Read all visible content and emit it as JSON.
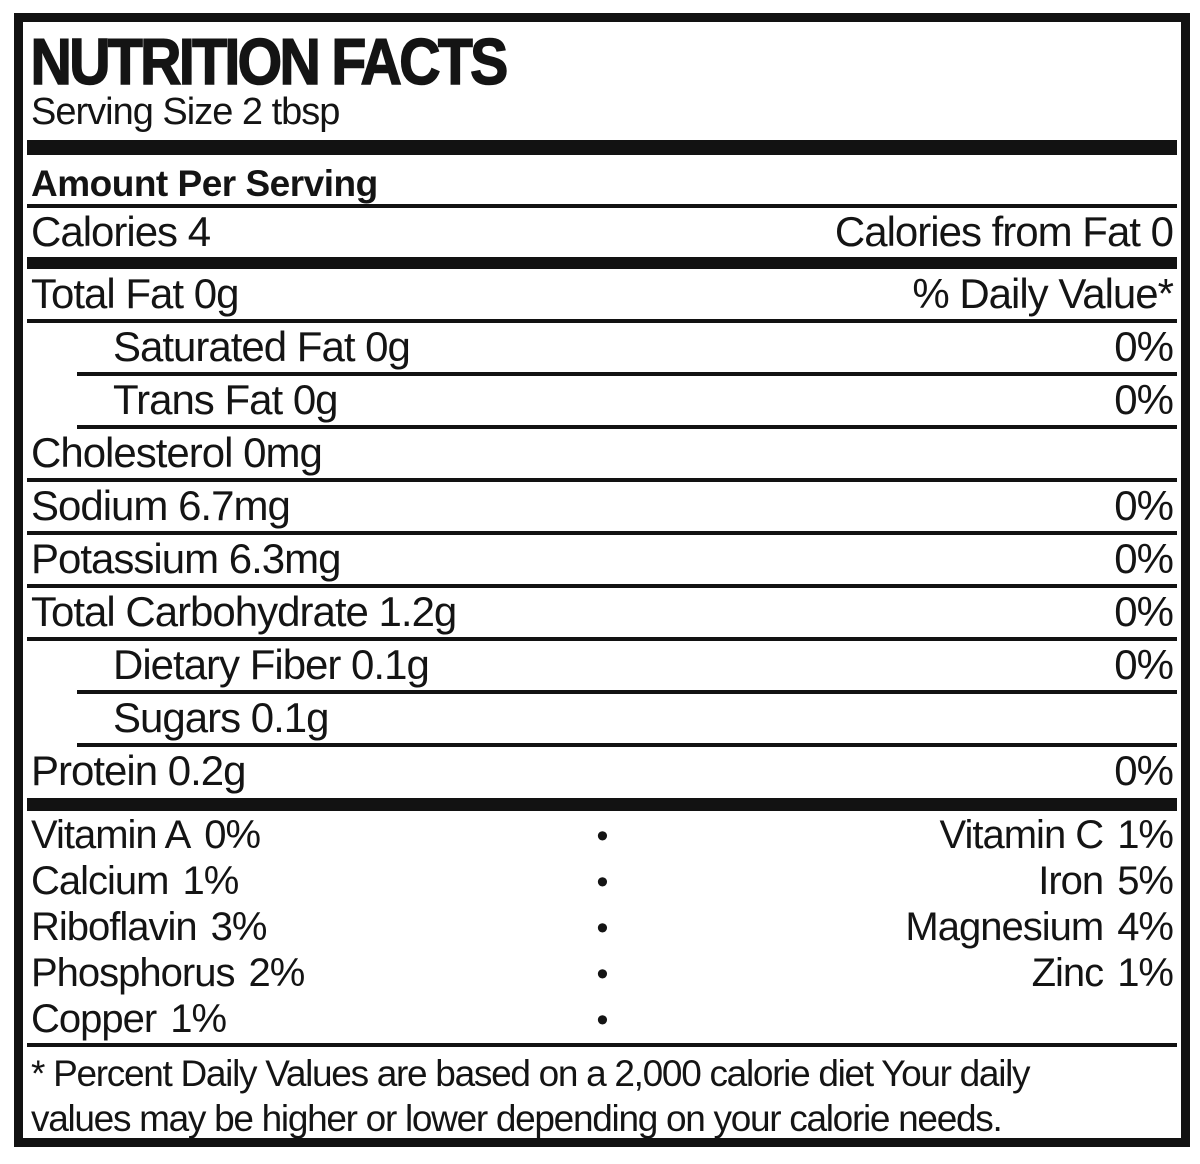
{
  "colors": {
    "ink": "#121212",
    "background": "#ffffff"
  },
  "header": {
    "title": "NUTRITION FACTS",
    "serving_size": "Serving Size 2 tbsp",
    "amount_per_serving": "Amount Per Serving"
  },
  "calories_row": {
    "label": "Calories 4",
    "right": "Calories from Fat 0"
  },
  "nutrient_rows": [
    {
      "label": "Total Fat 0g",
      "value": "% Daily Value*",
      "indent": false
    },
    {
      "label": "Saturated Fat 0g",
      "value": "0%",
      "indent": true
    },
    {
      "label": "Trans Fat 0g",
      "value": "0%",
      "indent": true
    },
    {
      "label": "Cholesterol 0mg",
      "value": "",
      "indent": false
    },
    {
      "label": "Sodium 6.7mg",
      "value": "0%",
      "indent": false
    },
    {
      "label": "Potassium 6.3mg",
      "value": "0%",
      "indent": false
    },
    {
      "label": "Total Carbohydrate 1.2g",
      "value": "0%",
      "indent": false
    },
    {
      "label": "Dietary Fiber 0.1g",
      "value": "0%",
      "indent": true
    },
    {
      "label": "Sugars 0.1g",
      "value": "",
      "indent": true
    },
    {
      "label": "Protein 0.2g",
      "value": "0%",
      "indent": false
    }
  ],
  "bullet": "•",
  "micronutrient_rows": [
    {
      "left_name": "Vitamin A",
      "left_value": "0%",
      "right_name": "Vitamin C",
      "right_value": "1%"
    },
    {
      "left_name": "Calcium",
      "left_value": "1%",
      "right_name": "Iron",
      "right_value": "5%"
    },
    {
      "left_name": "Riboflavin",
      "left_value": "3%",
      "right_name": "Magnesium",
      "right_value": "4%"
    },
    {
      "left_name": "Phosphorus",
      "left_value": "2%",
      "right_name": "Zinc",
      "right_value": "1%"
    },
    {
      "left_name": "Copper",
      "left_value": "1%",
      "right_name": "",
      "right_value": ""
    }
  ],
  "footnote": {
    "line1": "* Percent Daily Values are based on a 2,000 calorie diet Your daily",
    "line2": "values may be higher or lower depending on your calorie needs."
  }
}
